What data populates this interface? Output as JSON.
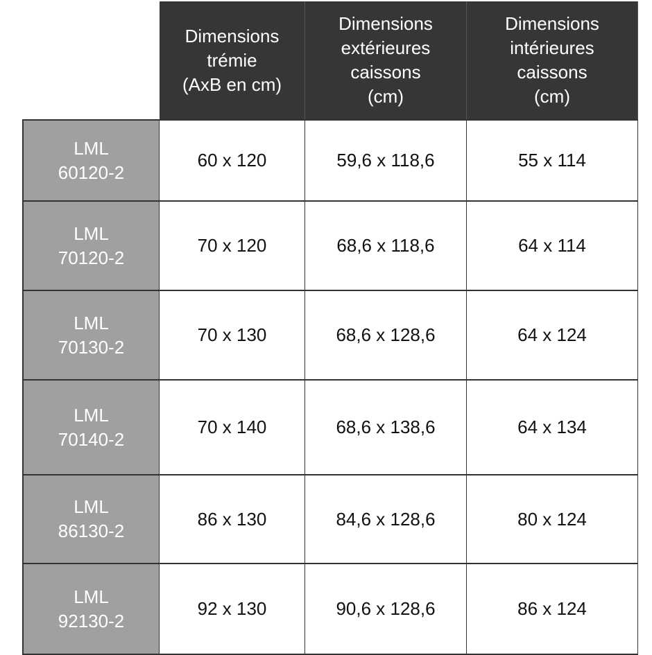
{
  "colors": {
    "header_bg": "#363636",
    "code_bg": "#a0a0a0",
    "border": "#333333"
  },
  "headers": [
    "Dimensions\ntrémie\n(AxB en cm)",
    "Dimensions\nextérieures\ncaissons\n(cm)",
    "Dimensions\nintérieures\ncaissons\n(cm)"
  ],
  "rows": [
    {
      "code": "LML\n60120-2",
      "tremie": "60 x 120",
      "exterieures": "59,6 x 118,6",
      "interieures": "55 x 114"
    },
    {
      "code": "LML\n70120-2",
      "tremie": "70 x 120",
      "exterieures": "68,6 x 118,6",
      "interieures": "64 x 114"
    },
    {
      "code": "LML\n70130-2",
      "tremie": "70 x 130",
      "exterieures": "68,6 x 128,6",
      "interieures": "64 x 124"
    },
    {
      "code": "LML\n70140-2",
      "tremie": "70 x 140",
      "exterieures": "68,6 x 138,6",
      "interieures": "64 x 134"
    },
    {
      "code": "LML\n86130-2",
      "tremie": "86 x 130",
      "exterieures": "84,6 x 128,6",
      "interieures": "80 x 124"
    },
    {
      "code": "LML\n92130-2",
      "tremie": "92 x 130",
      "exterieures": "90,6 x 128,6",
      "interieures": "86 x 124"
    }
  ]
}
